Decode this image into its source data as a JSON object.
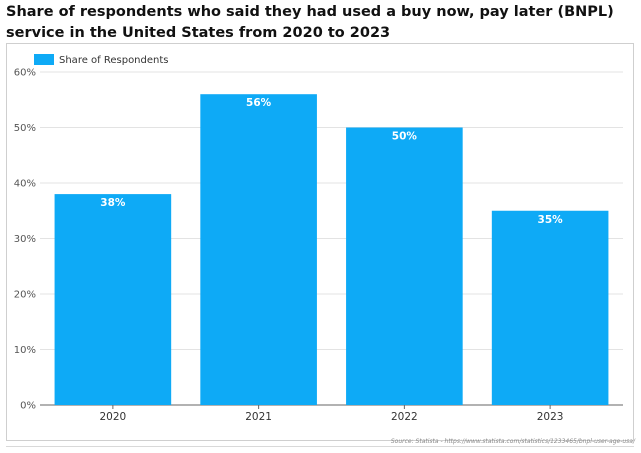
{
  "title": "Share of respondents who said they had used a buy now, pay later (BNPL) service in the United States from 2020 to 2023",
  "source": "Source: Statista - https://www.statista.com/statistics/1233465/bnpl-user-age-usa/",
  "colors": {
    "bar": "#0eaaf6",
    "grid": "#e3e3e3",
    "axis": "#666666",
    "label_text": "#ffffff",
    "tick_text": "#555555"
  },
  "chart_data": {
    "type": "bar",
    "categories": [
      "2020",
      "2021",
      "2022",
      "2023"
    ],
    "series": [
      {
        "name": "Share of Respondents",
        "values": [
          38,
          56,
          50,
          35
        ]
      }
    ],
    "data_labels": [
      "38%",
      "56%",
      "50%",
      "35%"
    ],
    "y_ticks": [
      "0%",
      "10%",
      "20%",
      "30%",
      "40%",
      "50%",
      "60%"
    ],
    "ylim": [
      0,
      60
    ],
    "grid": true,
    "legend_position": "top-left",
    "xlabel": "",
    "ylabel": ""
  }
}
